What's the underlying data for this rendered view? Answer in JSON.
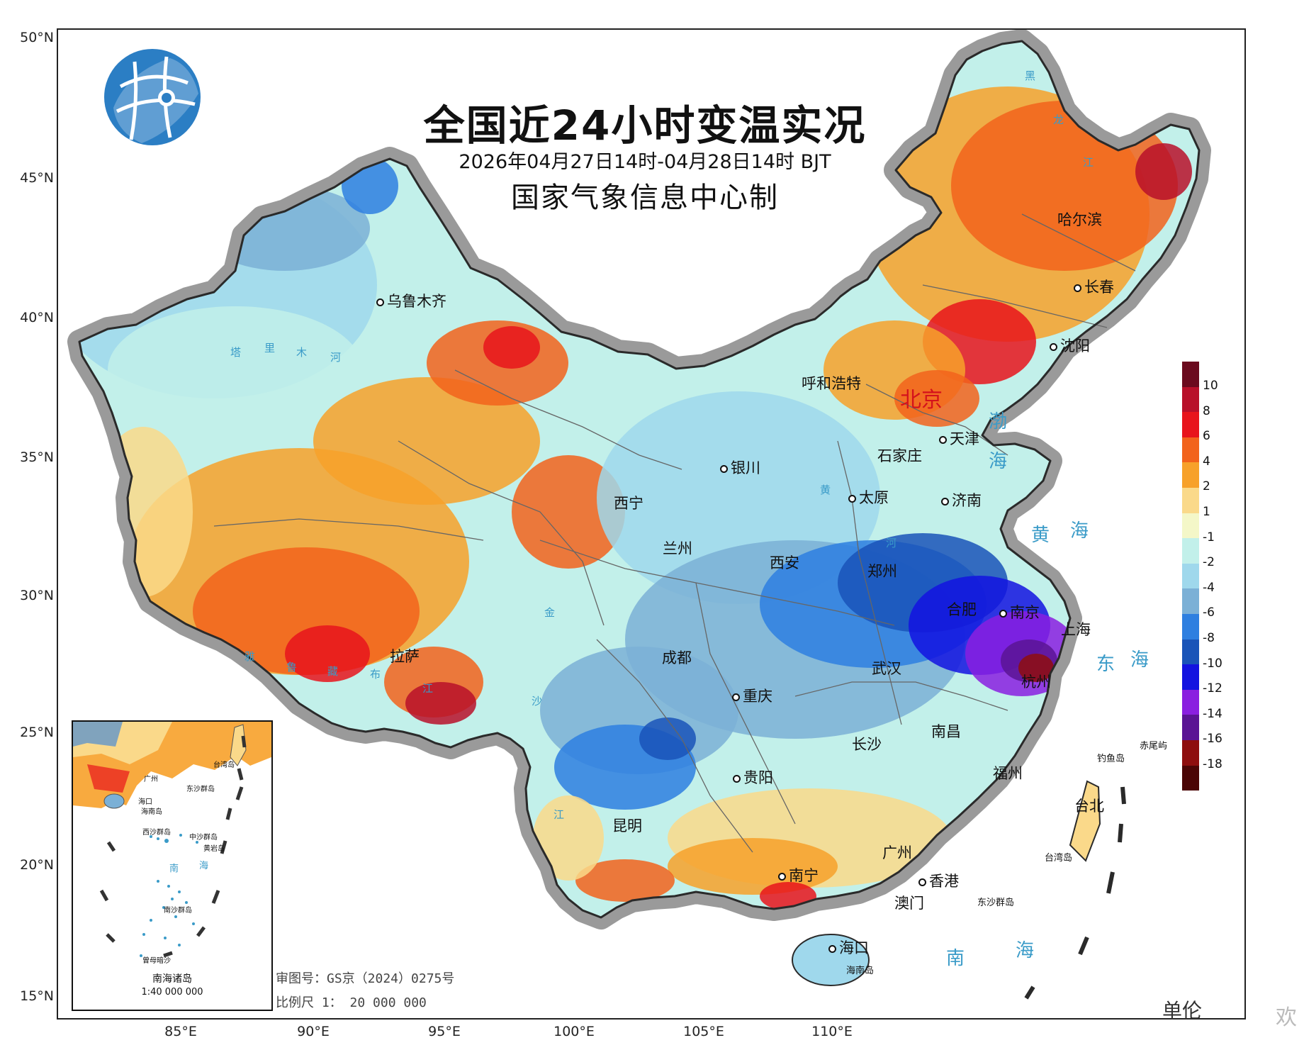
{
  "header": {
    "title": "全国近24小时变温实况",
    "subtitle": "2026年04月27日14时-04月28日14时 BJT",
    "producer": "国家气象信息中心制"
  },
  "axes": {
    "lat_labels": [
      "50°N",
      "45°N",
      "40°N",
      "35°N",
      "30°N",
      "25°N",
      "20°N",
      "15°N"
    ],
    "lon_labels": [
      "85°E",
      "90°E",
      "95°E",
      "100°E",
      "105°E",
      "110°E"
    ]
  },
  "cities": [
    {
      "name": "乌鲁木齐"
    },
    {
      "name": "呼和浩特"
    },
    {
      "name": "北京"
    },
    {
      "name": "天津"
    },
    {
      "name": "石家庄"
    },
    {
      "name": "太原"
    },
    {
      "name": "济南"
    },
    {
      "name": "银川"
    },
    {
      "name": "西宁"
    },
    {
      "name": "兰州"
    },
    {
      "name": "西安"
    },
    {
      "name": "郑州"
    },
    {
      "name": "合肥"
    },
    {
      "name": "南京"
    },
    {
      "name": "上海"
    },
    {
      "name": "杭州"
    },
    {
      "name": "武汉"
    },
    {
      "name": "成都"
    },
    {
      "name": "重庆"
    },
    {
      "name": "拉萨"
    },
    {
      "name": "长沙"
    },
    {
      "name": "南昌"
    },
    {
      "name": "贵阳"
    },
    {
      "name": "福州"
    },
    {
      "name": "台北"
    },
    {
      "name": "昆明"
    },
    {
      "name": "广州"
    },
    {
      "name": "南宁"
    },
    {
      "name": "香港"
    },
    {
      "name": "澳门"
    },
    {
      "name": "海口"
    },
    {
      "name": "哈尔滨"
    },
    {
      "name": "长春"
    },
    {
      "name": "沈阳"
    }
  ],
  "seas": [
    "渤",
    "海",
    "黄",
    "海",
    "东",
    "海",
    "南",
    "海"
  ],
  "rivers": [
    "塔",
    "里",
    "木",
    "河",
    "雅",
    "鲁",
    "藏",
    "布",
    "江",
    "黄",
    "河",
    "金",
    "沙",
    "江",
    "黑",
    "龙",
    "江"
  ],
  "islands": {
    "diaoyu": "钓鱼岛",
    "chiwei": "赤尾屿",
    "taiwan": "台湾岛",
    "dongsha": "东沙群岛",
    "hainan": "海南岛"
  },
  "inset": {
    "title": "南海诸岛",
    "scale": "1:40 000 000",
    "labels": {
      "guangzhou": "广州",
      "taiwan": "台湾岛",
      "dongsha": "东沙群岛",
      "haikou": "海口",
      "hainan": "海南岛",
      "xisha": "西沙群岛",
      "zhongsha": "中沙群岛",
      "huangyan": "黄岩岛",
      "nan": "南",
      "hai": "海",
      "nansha": "南沙群岛",
      "zengmu": "曾母暗沙"
    }
  },
  "footer": {
    "approval_number": "审图号：GS京（2024）0275号",
    "scale": "比例尺 1： 20 000 000"
  },
  "legend": {
    "unit": "",
    "colors": [
      "#6b0a1e",
      "#b8102a",
      "#e8141c",
      "#f2631c",
      "#f7a12a",
      "#fad98a",
      "#f4f7c8",
      "#c2f0ea",
      "#9fd8ec",
      "#7bb0d6",
      "#2e7fe0",
      "#1a54b8",
      "#1313e0",
      "#8a1fe0",
      "#5a1494",
      "#8e0e0e",
      "#4b0505"
    ],
    "ticks": [
      "10",
      "8",
      "6",
      "4",
      "2",
      "1",
      "-1",
      "-2",
      "-4",
      "-6",
      "-8",
      "-10",
      "-12",
      "-14",
      "-16",
      "-18"
    ]
  },
  "watermark": "单伦",
  "watermark_right": "欢"
}
